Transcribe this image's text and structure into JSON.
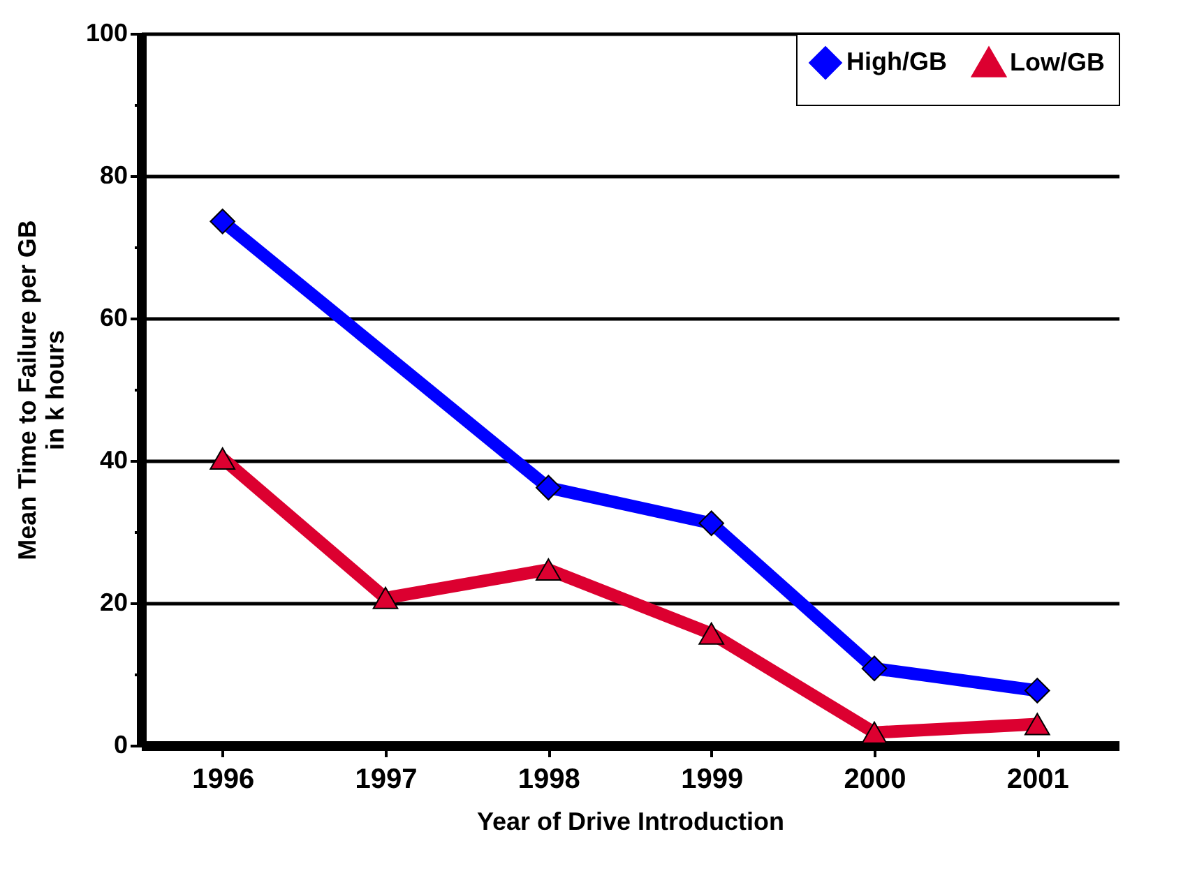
{
  "chart_data": {
    "type": "line",
    "xlabel": "Year of Drive Introduction",
    "ylabel": "Mean Time to Failure per GB\nin k hours",
    "categories": [
      "1996",
      "1997",
      "1998",
      "1999",
      "2000",
      "2001"
    ],
    "series": [
      {
        "name": "High/GB",
        "color": "#0000ff",
        "marker": "diamond",
        "values": [
          73.6,
          null,
          36.2,
          31.2,
          10.8,
          7.7
        ]
      },
      {
        "name": "Low/GB",
        "color": "#dc0030",
        "marker": "triangle",
        "values": [
          40.3,
          20.7,
          24.7,
          15.7,
          1.8,
          3.0
        ]
      }
    ],
    "ylim": [
      0,
      100
    ],
    "yticks": [
      0,
      {
        "value": 10,
        "label": null
      },
      20,
      {
        "value": 30,
        "label": null
      },
      40,
      {
        "value": 50,
        "label": null
      },
      60,
      {
        "value": 70,
        "label": null
      },
      80,
      {
        "value": 90,
        "label": null
      },
      100
    ],
    "grid": "y",
    "legend": "top right",
    "line_style": "solid"
  }
}
